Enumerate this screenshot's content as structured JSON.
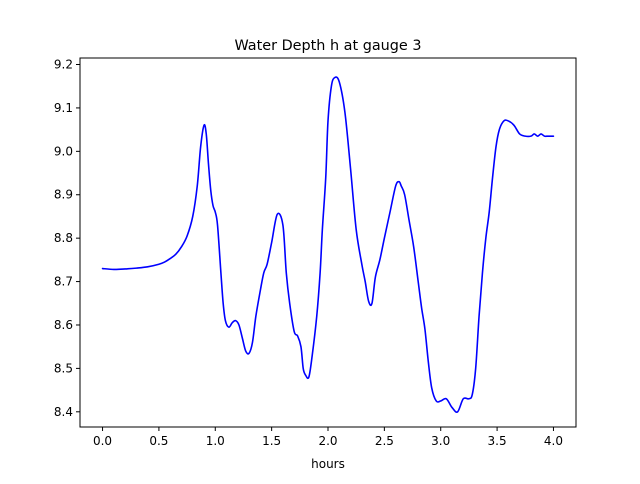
{
  "chart_data": {
    "type": "line",
    "title": "Water Depth h at gauge 3",
    "xlabel": "hours",
    "ylabel": "",
    "xlim": [
      -0.2,
      4.2
    ],
    "ylim": [
      8.365,
      9.215
    ],
    "xticks": [
      "0.0",
      "0.5",
      "1.0",
      "1.5",
      "2.0",
      "2.5",
      "3.0",
      "3.5",
      "4.0"
    ],
    "yticks": [
      "8.4",
      "8.5",
      "8.6",
      "8.7",
      "8.8",
      "8.9",
      "9.0",
      "9.1",
      "9.2"
    ],
    "grid": false,
    "legend": "none",
    "series": [
      {
        "color": "#0000ff",
        "x": [
          0.0,
          0.1,
          0.2,
          0.3,
          0.4,
          0.5,
          0.55,
          0.6,
          0.65,
          0.7,
          0.75,
          0.8,
          0.84,
          0.87,
          0.9,
          0.92,
          0.94,
          0.96,
          0.98,
          1.0,
          1.02,
          1.05,
          1.07,
          1.09,
          1.12,
          1.15,
          1.18,
          1.21,
          1.24,
          1.27,
          1.3,
          1.33,
          1.36,
          1.4,
          1.43,
          1.46,
          1.5,
          1.55,
          1.6,
          1.63,
          1.66,
          1.7,
          1.73,
          1.76,
          1.78,
          1.8,
          1.83,
          1.86,
          1.9,
          1.93,
          1.95,
          1.98,
          2.0,
          2.03,
          2.06,
          2.1,
          2.15,
          2.2,
          2.25,
          2.3,
          2.33,
          2.36,
          2.39,
          2.42,
          2.46,
          2.5,
          2.55,
          2.6,
          2.63,
          2.65,
          2.68,
          2.72,
          2.76,
          2.8,
          2.83,
          2.86,
          2.89,
          2.92,
          2.96,
          3.0,
          3.05,
          3.1,
          3.15,
          3.2,
          3.25,
          3.28,
          3.31,
          3.34,
          3.37,
          3.4,
          3.43,
          3.46,
          3.49,
          3.52,
          3.56,
          3.6,
          3.65,
          3.7,
          3.75,
          3.8,
          3.83,
          3.86,
          3.89,
          3.92,
          3.95,
          3.97,
          4.0
        ],
        "y": [
          8.73,
          8.728,
          8.729,
          8.731,
          8.734,
          8.74,
          8.745,
          8.753,
          8.763,
          8.78,
          8.805,
          8.85,
          8.92,
          9.01,
          9.06,
          9.04,
          8.97,
          8.91,
          8.875,
          8.86,
          8.83,
          8.72,
          8.65,
          8.61,
          8.595,
          8.605,
          8.61,
          8.6,
          8.57,
          8.54,
          8.535,
          8.56,
          8.62,
          8.68,
          8.72,
          8.74,
          8.79,
          8.855,
          8.83,
          8.72,
          8.65,
          8.585,
          8.575,
          8.55,
          8.5,
          8.485,
          8.48,
          8.53,
          8.62,
          8.72,
          8.82,
          8.94,
          9.07,
          9.15,
          9.17,
          9.16,
          9.09,
          8.96,
          8.82,
          8.74,
          8.7,
          8.655,
          8.65,
          8.71,
          8.75,
          8.8,
          8.86,
          8.92,
          8.93,
          8.92,
          8.9,
          8.84,
          8.78,
          8.7,
          8.64,
          8.59,
          8.515,
          8.455,
          8.425,
          8.425,
          8.43,
          8.41,
          8.4,
          8.43,
          8.43,
          8.44,
          8.5,
          8.62,
          8.72,
          8.8,
          8.86,
          8.94,
          9.01,
          9.05,
          9.07,
          9.07,
          9.06,
          9.04,
          9.035,
          9.035,
          9.04,
          9.035,
          9.04,
          9.035,
          9.035,
          9.035,
          9.035
        ]
      }
    ]
  }
}
